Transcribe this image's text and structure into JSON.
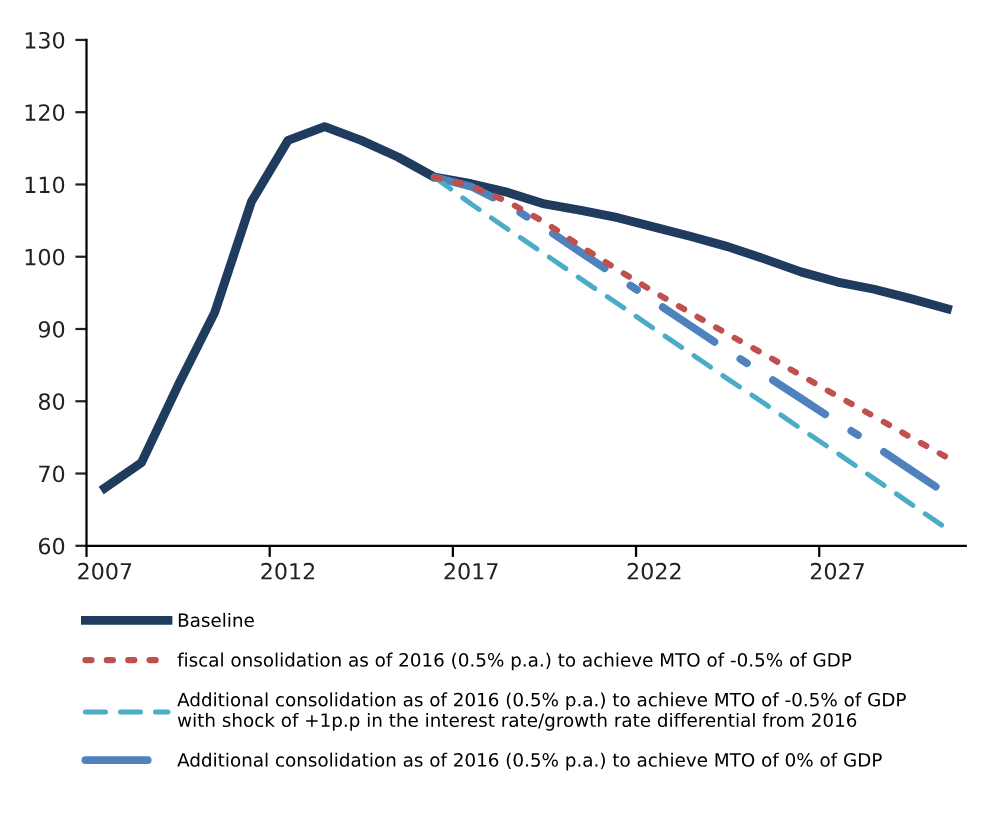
{
  "chart_data": {
    "type": "line",
    "x": [
      2007,
      2008,
      2009,
      2010,
      2011,
      2012,
      2013,
      2014,
      2015,
      2016,
      2017,
      2018,
      2019,
      2020,
      2021,
      2022,
      2023,
      2024,
      2025,
      2026,
      2027,
      2028,
      2029,
      2030
    ],
    "series": [
      {
        "name": "Baseline",
        "color": "#1f3b5e",
        "line_style": "solid",
        "values": [
          68.0,
          71.5,
          82.2,
          92.3,
          107.6,
          116.1,
          118.0,
          116.1,
          113.8,
          111.0,
          110.1,
          108.9,
          107.3,
          106.4,
          105.4,
          104.1,
          102.8,
          101.4,
          99.7,
          97.9,
          96.5,
          95.5,
          94.2,
          92.8
        ]
      },
      {
        "name": "fiscal onsolidation as of 2016 (0.5% p.a.) to achieve MTO of -0.5% of GDP",
        "color": "#c0504d",
        "line_style": "dotted",
        "x": [
          2016,
          2017,
          2018,
          2019,
          2020,
          2021,
          2022,
          2023,
          2024,
          2025,
          2026,
          2027,
          2028,
          2029,
          2030
        ],
        "values": [
          111.0,
          109.8,
          107.6,
          104.8,
          101.4,
          98.2,
          95.1,
          92.2,
          89.3,
          86.5,
          83.6,
          80.7,
          77.9,
          75.0,
          72.2
        ]
      },
      {
        "name": "Additional consolidation as of 2016 (0.5% p.a.) to achieve MTO of -0.5% of GDP\nwith shock of +1p.p in the interest rate/growth rate differential from 2016",
        "color": "#4bacc6",
        "line_style": "dashed",
        "x": [
          2016,
          2017,
          2018,
          2019,
          2020,
          2021,
          2022,
          2023,
          2024,
          2025,
          2026,
          2027,
          2028,
          2029,
          2030
        ],
        "values": [
          111.0,
          107.3,
          103.8,
          100.4,
          96.9,
          93.5,
          90.0,
          86.6,
          83.1,
          79.7,
          76.2,
          72.8,
          69.3,
          65.8,
          62.3
        ]
      },
      {
        "name": "Additional consolidation as of 2016 (0.5% p.a.) to achieve MTO of 0% of GDP",
        "color": "#4f81bd",
        "line_style": "dashdot",
        "x": [
          2016,
          2017,
          2018,
          2019,
          2020,
          2021,
          2022,
          2023,
          2024,
          2025,
          2026,
          2027,
          2028,
          2029,
          2030
        ],
        "values": [
          111.0,
          109.7,
          107.2,
          104.0,
          100.6,
          97.2,
          93.8,
          90.4,
          87.0,
          83.7,
          80.4,
          77.1,
          73.9,
          70.5,
          67.1
        ]
      }
    ],
    "xlim": [
      2006.5,
      2030.5
    ],
    "xticks": [
      {
        "value": 2006.5,
        "label": null
      },
      2007,
      {
        "value": 2011.5,
        "label": null
      },
      2012,
      {
        "value": 2016.5,
        "label": null
      },
      2017,
      {
        "value": 2021.5,
        "label": null
      },
      2022,
      {
        "value": 2026.5,
        "label": null
      },
      2027
    ],
    "ylim": [
      60,
      130
    ],
    "yticks": [
      60,
      70,
      80,
      90,
      100,
      110,
      120,
      130
    ],
    "grid": false,
    "legend": "bottom",
    "marker": "none"
  }
}
